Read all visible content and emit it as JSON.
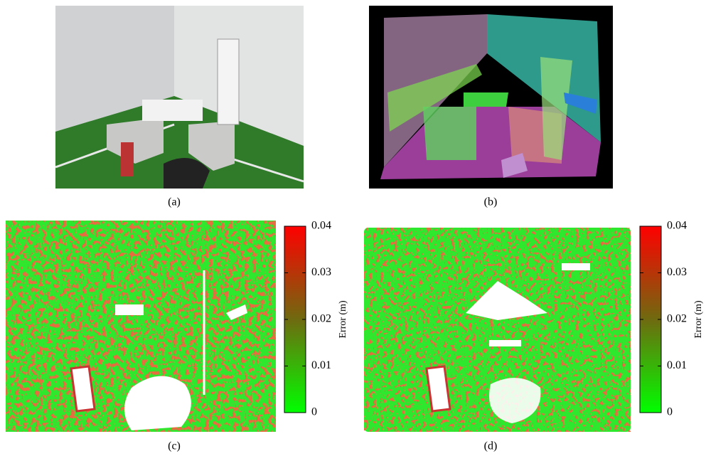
{
  "panels": [
    {
      "caption": "(a)"
    },
    {
      "caption": "(b)"
    },
    {
      "caption": "(c)",
      "colorbar": {
        "label": "Error (m)",
        "lim": [
          0,
          0.04
        ],
        "ticks": [
          0,
          0.01,
          0.02,
          0.03,
          0.04
        ]
      }
    },
    {
      "caption": "(d)",
      "colorbar": {
        "label": "Error (m)",
        "lim": [
          0,
          0.04
        ],
        "ticks": [
          0,
          0.01,
          0.02,
          0.03,
          0.04
        ]
      }
    }
  ]
}
